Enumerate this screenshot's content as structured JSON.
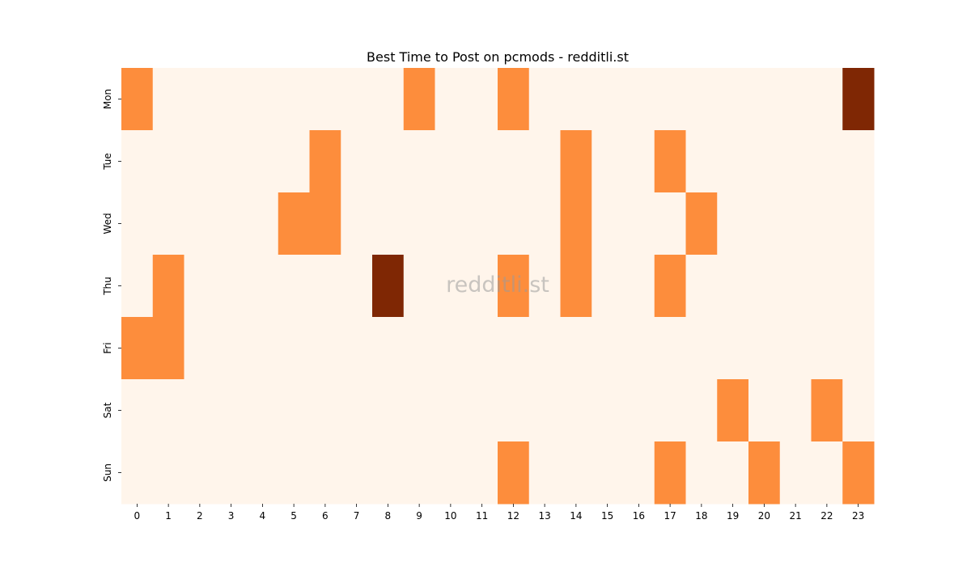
{
  "chart_data": {
    "type": "heatmap",
    "title": "Best Time to Post on pcmods - redditli.st",
    "watermark": "redditli.st",
    "xlabel": "",
    "ylabel": "",
    "x": [
      "0",
      "1",
      "2",
      "3",
      "4",
      "5",
      "6",
      "7",
      "8",
      "9",
      "10",
      "11",
      "12",
      "13",
      "14",
      "15",
      "16",
      "17",
      "18",
      "19",
      "20",
      "21",
      "22",
      "23"
    ],
    "y": [
      "Mon",
      "Tue",
      "Wed",
      "Thu",
      "Fri",
      "Sat",
      "Sun"
    ],
    "values": [
      [
        1,
        0,
        0,
        0,
        0,
        0,
        0,
        0,
        0,
        1,
        0,
        0,
        1,
        0,
        0,
        0,
        0,
        0,
        0,
        0,
        0,
        0,
        0,
        2
      ],
      [
        0,
        0,
        0,
        0,
        0,
        0,
        1,
        0,
        0,
        0,
        0,
        0,
        0,
        0,
        1,
        0,
        0,
        1,
        0,
        0,
        0,
        0,
        0,
        0
      ],
      [
        0,
        0,
        0,
        0,
        0,
        1,
        1,
        0,
        0,
        0,
        0,
        0,
        0,
        0,
        1,
        0,
        0,
        0,
        1,
        0,
        0,
        0,
        0,
        0
      ],
      [
        0,
        1,
        0,
        0,
        0,
        0,
        0,
        0,
        2,
        0,
        0,
        0,
        1,
        0,
        1,
        0,
        0,
        1,
        0,
        0,
        0,
        0,
        0,
        0
      ],
      [
        1,
        1,
        0,
        0,
        0,
        0,
        0,
        0,
        0,
        0,
        0,
        0,
        0,
        0,
        0,
        0,
        0,
        0,
        0,
        0,
        0,
        0,
        0,
        0
      ],
      [
        0,
        0,
        0,
        0,
        0,
        0,
        0,
        0,
        0,
        0,
        0,
        0,
        0,
        0,
        0,
        0,
        0,
        0,
        0,
        1,
        0,
        0,
        1,
        0
      ],
      [
        0,
        0,
        0,
        0,
        0,
        0,
        0,
        0,
        0,
        0,
        0,
        0,
        1,
        0,
        0,
        0,
        0,
        1,
        0,
        0,
        1,
        0,
        0,
        1
      ]
    ],
    "colormap": [
      "#fff5eb",
      "#fd8d3c",
      "#7f2704"
    ],
    "grid": false,
    "legend": "none"
  }
}
